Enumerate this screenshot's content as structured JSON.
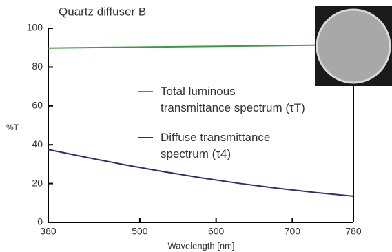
{
  "chart_data": {
    "type": "line",
    "title": "Quartz diffuser B",
    "x_label": "Wavelength [nm]",
    "y_label": "%T",
    "xlim": [
      380,
      780
    ],
    "xticks": [
      380,
      500,
      600,
      700,
      780
    ],
    "ylim": [
      0,
      100
    ],
    "yticks": [
      0,
      20,
      40,
      60,
      80,
      100
    ],
    "series": [
      {
        "name": "Total luminous transmittance spectrum (τT)",
        "color": "#3a9a4a",
        "x": [
          380,
          480,
          580,
          680,
          780
        ],
        "values": [
          89.8,
          90.2,
          90.6,
          91.0,
          91.5
        ]
      },
      {
        "name": "Diffuse transmittance spectrum (τ4)",
        "color": "#2a2f6e",
        "x": [
          380,
          430,
          480,
          530,
          580,
          630,
          680,
          730,
          780
        ],
        "values": [
          37.5,
          33.5,
          29.7,
          26.2,
          23.0,
          20.1,
          17.6,
          15.4,
          13.5
        ]
      }
    ]
  }
}
